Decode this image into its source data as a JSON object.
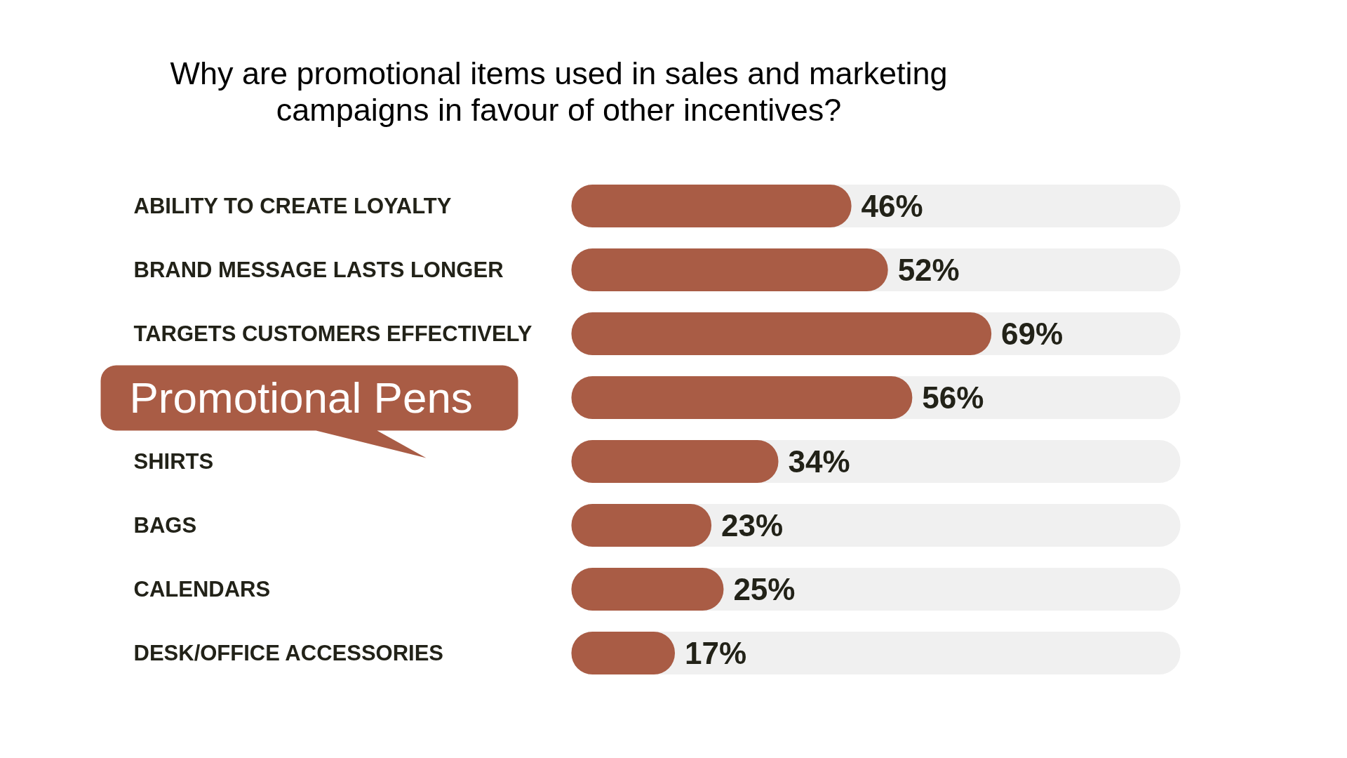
{
  "chart_data": {
    "type": "bar",
    "orientation": "horizontal",
    "title": "Why are promotional items used in sales and marketing\ncampaigns in favour of other incentives?",
    "categories": [
      "ABILITY TO CREATE LOYALTY",
      "BRAND MESSAGE LASTS LONGER",
      "TARGETS CUSTOMERS EFFECTIVELY",
      null,
      "SHIRTS",
      "BAGS",
      "CALENDARS",
      "DESK/OFFICE ACCESSORIES"
    ],
    "values": [
      46,
      52,
      69,
      56,
      34,
      23,
      25,
      17
    ],
    "value_labels": [
      "46%",
      "52%",
      "69%",
      "56%",
      "34%",
      "23%",
      "25%",
      "17%"
    ],
    "color": "#a95c45",
    "tick_labels": false,
    "annotations": [
      "Promotional Pens"
    ]
  }
}
